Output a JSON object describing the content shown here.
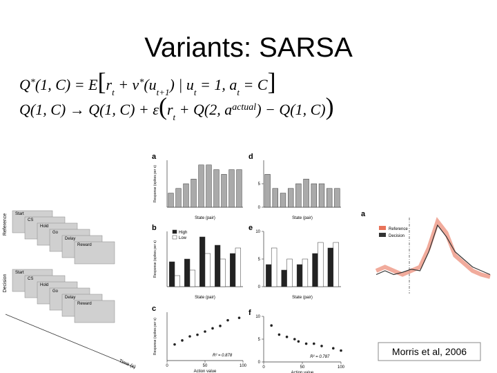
{
  "title": "Variants: SARSA",
  "equations": [
    {
      "parts": [
        "Q",
        "*",
        "(1, C) = E",
        "[",
        "r",
        "t",
        " + v",
        "*",
        "(u",
        "t+1",
        ") | u",
        "t",
        " = 1, a",
        "t",
        " = C",
        "]"
      ]
    },
    {
      "parts": [
        "Q(1, C) → Q(1, C) + ε",
        "(",
        "r",
        "t",
        " + Q(2, a",
        "actual",
        ") − Q(1, C)",
        ")"
      ]
    }
  ],
  "figure": {
    "task": {
      "rows": [
        {
          "label": "Reference",
          "steps": [
            "Start",
            "CS",
            "Hold",
            "Go",
            "Delay",
            "Reward"
          ]
        },
        {
          "label": "Decision",
          "steps": [
            "Start",
            "CS",
            "Hold",
            "Go",
            "Delay",
            "Reward"
          ]
        }
      ],
      "time_label": "Time (s)"
    },
    "panels": [
      {
        "letter": "a",
        "type": "bar",
        "xlabel": "State (pair)",
        "ylabel": "Response (spikes per s)",
        "ylim": [
          0,
          1
        ],
        "series": [
          {
            "color": "#aaaaaa",
            "values": [
              0.3,
              0.4,
              0.5,
              0.6,
              0.9,
              0.9,
              0.8,
              0.7,
              0.8,
              0.8
            ]
          }
        ]
      },
      {
        "letter": "b",
        "type": "bar",
        "xlabel": "State (pair)",
        "ylabel": "Response (spikes per s)",
        "ylim": [
          0,
          1
        ],
        "series": [
          {
            "name": "High",
            "color": "#222222",
            "values": [
              0.45,
              0.5,
              0.9,
              0.75,
              0.6
            ]
          },
          {
            "name": "Low",
            "color": "#ffffff",
            "values": [
              0.2,
              0.3,
              0.6,
              0.5,
              0.7
            ]
          }
        ]
      },
      {
        "letter": "c",
        "type": "scatter",
        "xlabel": "Action value",
        "ylabel": "Response (spikes per s)",
        "annotation": "R² = 0.878",
        "xlim": [
          0,
          100
        ],
        "xticks": [
          0,
          50,
          100
        ],
        "ylim": [
          0,
          6
        ],
        "x": [
          10,
          20,
          30,
          40,
          50,
          60,
          70,
          80,
          95
        ],
        "values": [
          2,
          2.5,
          3,
          3.2,
          3.6,
          4,
          4.3,
          5,
          5.3
        ]
      },
      {
        "letter": "d",
        "type": "bar",
        "xlabel": "State (pair)",
        "ylim": [
          0,
          10
        ],
        "yticks": [
          0,
          5
        ],
        "series": [
          {
            "color": "#aaaaaa",
            "values": [
              7,
              4,
              3,
              4,
              5,
              6,
              5,
              5,
              4,
              4
            ]
          }
        ]
      },
      {
        "letter": "e",
        "type": "bar",
        "xlabel": "State (pair)",
        "ylim": [
          0,
          10
        ],
        "yticks": [
          0,
          5,
          10
        ],
        "series": [
          {
            "color": "#222222",
            "values": [
              4,
              3,
              4,
              6,
              7
            ]
          },
          {
            "color": "#ffffff",
            "values": [
              7,
              5,
              5,
              8,
              8
            ]
          }
        ]
      },
      {
        "letter": "f",
        "type": "scatter",
        "xlabel": "Action value",
        "annotation": "R² = 0.787",
        "xlim": [
          0,
          100
        ],
        "xticks": [
          0,
          50,
          100
        ],
        "ylim": [
          0,
          10
        ],
        "yticks": [
          0,
          5,
          10
        ],
        "x": [
          10,
          20,
          30,
          40,
          45,
          55,
          65,
          75,
          90,
          100
        ],
        "values": [
          8,
          6,
          5.5,
          5,
          4.5,
          4,
          4,
          3.5,
          3,
          2.5
        ]
      },
      {
        "letter": "a",
        "type": "line",
        "ylim": [
          0,
          10
        ],
        "series": [
          {
            "name": "Reference",
            "color": "#e8735a",
            "values": [
              3,
              3.5,
              3,
              2.5,
              3,
              3.5,
              6,
              9.5,
              8,
              5,
              4,
              3,
              2.5,
              2.2
            ]
          },
          {
            "name": "Decision",
            "color": "#333333",
            "values": [
              2.5,
              3,
              2.5,
              2.8,
              3.2,
              3,
              5.5,
              9,
              7.5,
              5.5,
              4.5,
              3.5,
              3,
              2.5
            ]
          }
        ]
      }
    ]
  },
  "citation": "Morris et al, 2006"
}
